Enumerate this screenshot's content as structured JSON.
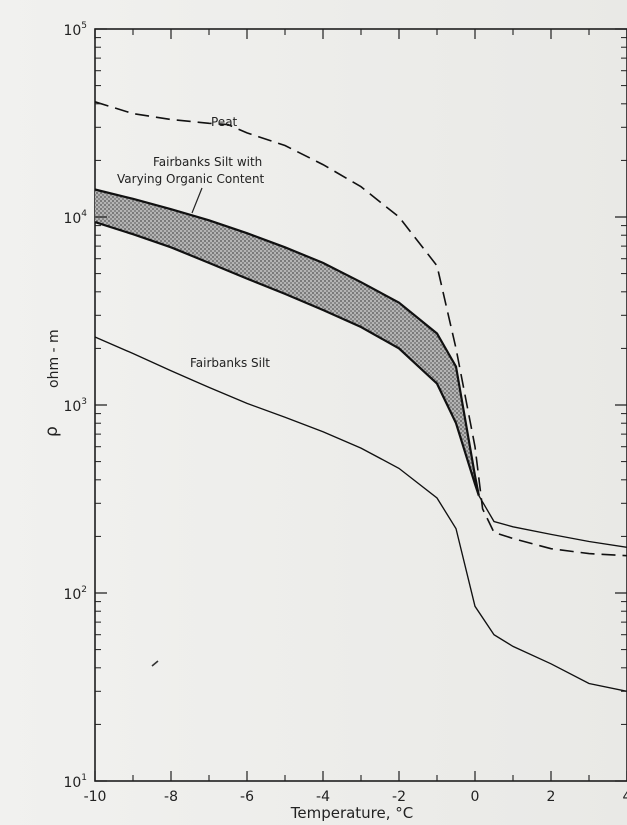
{
  "chart_data": {
    "type": "line",
    "title": "",
    "xlabel": "Temperature, °C",
    "ylabel_symbol": "ρ",
    "ylabel_unit": "ohm - m",
    "xlim": [
      -10,
      4
    ],
    "ylim": [
      10,
      100000
    ],
    "y_scale": "log",
    "x_ticks": [
      -10,
      -8,
      -6,
      -4,
      -2,
      0,
      2,
      4
    ],
    "x_tick_labels": [
      "-10",
      "-8",
      "-6",
      "-4",
      "-2",
      "0",
      "2",
      "4"
    ],
    "y_ticks": [
      10,
      100,
      1000,
      10000,
      100000
    ],
    "y_tick_labels": [
      {
        "base": "10",
        "exp": "1"
      },
      {
        "base": "10",
        "exp": "2"
      },
      {
        "base": "10",
        "exp": "3"
      },
      {
        "base": "10",
        "exp": "4"
      },
      {
        "base": "10",
        "exp": "5"
      }
    ],
    "grid": false,
    "band": {
      "name": "Fairbanks Silt with Varying Organic Content",
      "upper": [
        [
          -10,
          14000
        ],
        [
          -9,
          12500
        ],
        [
          -8,
          11000
        ],
        [
          -7,
          9600
        ],
        [
          -6,
          8200
        ],
        [
          -5,
          6900
        ],
        [
          -4,
          5700
        ],
        [
          -3,
          4500
        ],
        [
          -2,
          3500
        ],
        [
          -1,
          2400
        ],
        [
          -0.5,
          1600
        ],
        [
          0,
          420
        ],
        [
          0.1,
          330
        ]
      ],
      "lower": [
        [
          -10,
          9400
        ],
        [
          -9,
          8100
        ],
        [
          -8,
          6900
        ],
        [
          -7,
          5700
        ],
        [
          -6,
          4700
        ],
        [
          -5,
          3900
        ],
        [
          -4,
          3200
        ],
        [
          -3,
          2600
        ],
        [
          -2,
          2000
        ],
        [
          -1,
          1300
        ],
        [
          -0.5,
          800
        ],
        [
          0,
          380
        ],
        [
          0.1,
          330
        ]
      ]
    },
    "series": [
      {
        "name": "Peat",
        "style": "dashed",
        "points": [
          [
            -10,
            41000
          ],
          [
            -9,
            35500
          ],
          [
            -8,
            33000
          ],
          [
            -7,
            31500
          ],
          [
            -6.5,
            31000
          ],
          [
            -6,
            28000
          ],
          [
            -5,
            24000
          ],
          [
            -4,
            19000
          ],
          [
            -3,
            14500
          ],
          [
            -2,
            10000
          ],
          [
            -1,
            5500
          ],
          [
            -0.5,
            2000
          ],
          [
            0,
            600
          ],
          [
            0.2,
            280
          ],
          [
            0.5,
            210
          ],
          [
            1,
            195
          ],
          [
            2,
            172
          ],
          [
            3,
            162
          ],
          [
            4,
            158
          ]
        ]
      },
      {
        "name": "Fairbanks Silt",
        "style": "solid",
        "points": [
          [
            -10,
            2300
          ],
          [
            -9,
            1880
          ],
          [
            -8,
            1520
          ],
          [
            -7,
            1240
          ],
          [
            -6,
            1020
          ],
          [
            -5,
            860
          ],
          [
            -4,
            720
          ],
          [
            -3,
            590
          ],
          [
            -2,
            460
          ],
          [
            -1,
            320
          ],
          [
            -0.5,
            220
          ],
          [
            0,
            85
          ],
          [
            0.5,
            60
          ],
          [
            1,
            52
          ],
          [
            2,
            42
          ],
          [
            3,
            33
          ],
          [
            4,
            30
          ]
        ]
      },
      {
        "name": "",
        "style": "solid",
        "points": [
          [
            0.1,
            330
          ],
          [
            0.5,
            240
          ],
          [
            1,
            225
          ],
          [
            2,
            205
          ],
          [
            3,
            188
          ],
          [
            4,
            175
          ]
        ]
      }
    ],
    "annotations": {
      "peat": "Peat",
      "band_line1": "Fairbanks Silt with",
      "band_line2": "Varying Organic Content",
      "silt": "Fairbanks Silt"
    }
  }
}
